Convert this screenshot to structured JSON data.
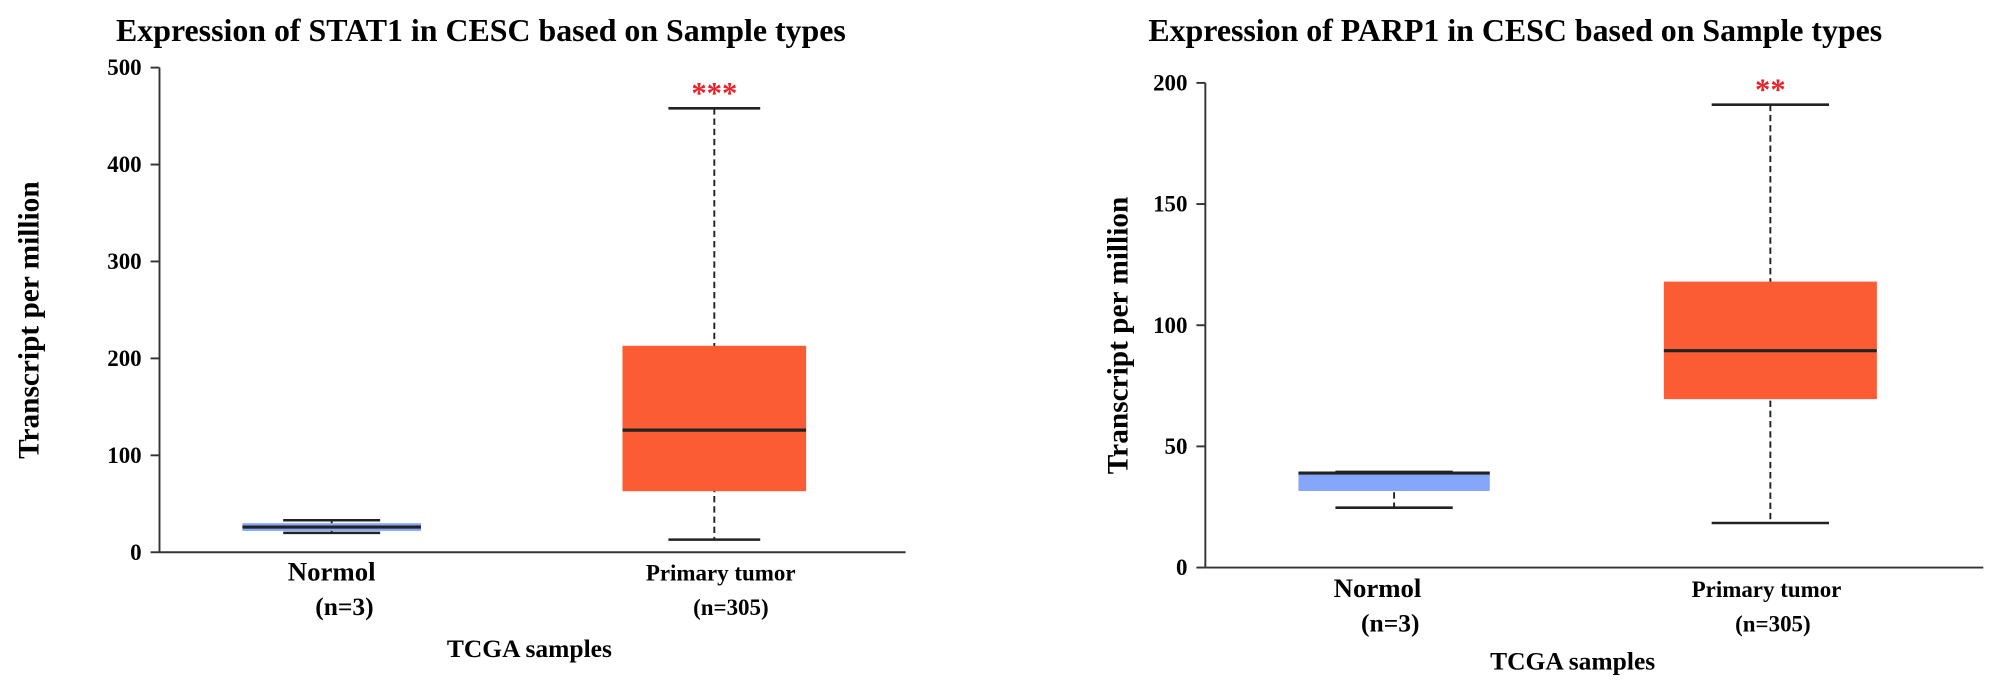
{
  "chart_data": [
    {
      "type": "box",
      "title": "Expression of STAT1 in CESC based on Sample types",
      "xlabel": "TCGA samples",
      "ylabel": "Transcript per million",
      "ylim": [
        0,
        500
      ],
      "yticks": [
        0,
        100,
        200,
        300,
        400,
        500
      ],
      "grid": false,
      "categories": [
        {
          "name": "Normol",
          "n": "(n=3)",
          "color": "#86a6fb",
          "whisker_low": 20,
          "q1": 22,
          "median": 26,
          "q3": 30,
          "whisker_high": 33,
          "significance": ""
        },
        {
          "name": "Primary tumor",
          "n": "(n=305)",
          "color": "#fc5c33",
          "whisker_low": 13,
          "q1": 63,
          "median": 126,
          "q3": 213,
          "whisker_high": 458,
          "significance": "***"
        }
      ]
    },
    {
      "type": "box",
      "title": "Expression of PARP1 in CESC based on Sample types",
      "xlabel": "TCGA samples",
      "ylabel": "Transcript per million",
      "ylim": [
        0,
        200
      ],
      "yticks": [
        0,
        50,
        100,
        150,
        200
      ],
      "grid": false,
      "categories": [
        {
          "name": "Normol",
          "n": "(n=3)",
          "color": "#86a6fb",
          "whisker_low": 24.7,
          "q1": 31.6,
          "median": 39,
          "q3": 39.5,
          "whisker_high": 39.5,
          "significance": ""
        },
        {
          "name": "Primary tumor",
          "n": "(n=305)",
          "color": "#fc5c33",
          "whisker_low": 18.4,
          "q1": 69.5,
          "median": 89.5,
          "q3": 118,
          "whisker_high": 191,
          "significance": "**"
        }
      ]
    }
  ],
  "colors": {
    "median": "#222222",
    "significance": "#e8232a",
    "axis": "#333333"
  }
}
